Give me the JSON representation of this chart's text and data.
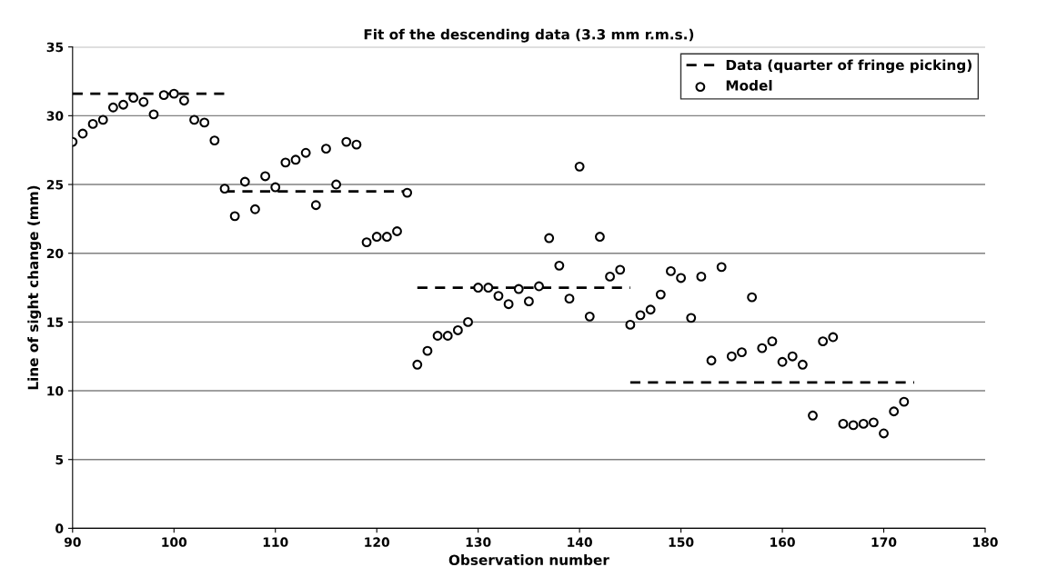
{
  "chart_data": {
    "type": "scatter",
    "title": "Fit of the descending data (3.3 mm r.m.s.)",
    "xlabel": "Observation number",
    "ylabel": "Line of sight change (mm)",
    "xlim": [
      90,
      180
    ],
    "xticks": [
      90,
      100,
      110,
      120,
      130,
      140,
      150,
      160,
      170,
      180
    ],
    "ylim": [
      0,
      35
    ],
    "yticks": [
      0,
      5,
      10,
      15,
      20,
      25,
      30,
      35
    ],
    "grid": "y",
    "legend": "top right",
    "series": [
      {
        "name": "Data (quarter of fringe picking)",
        "type": "line",
        "line_style": "dashed",
        "marker": "none",
        "color": "#000000",
        "x": [
          90,
          105
        ],
        "values": [
          31.6,
          31.6
        ]
      },
      {
        "type": "line",
        "line_style": "dashed",
        "marker": "none",
        "color": "#000000",
        "x": [
          105,
          123
        ],
        "values": [
          24.5,
          24.5
        ]
      },
      {
        "type": "line",
        "line_style": "dashed",
        "marker": "none",
        "color": "#000000",
        "x": [
          124,
          145
        ],
        "values": [
          17.5,
          17.5
        ]
      },
      {
        "type": "line",
        "line_style": "dashed",
        "marker": "none",
        "color": "#000000",
        "x": [
          145,
          173
        ],
        "values": [
          10.6,
          10.6
        ]
      },
      {
        "name": "Model",
        "marker": "circle",
        "color": "#000000",
        "x": [
          90,
          91,
          92,
          93,
          94,
          95,
          96,
          97,
          98,
          99,
          100,
          101,
          102,
          103,
          104,
          105,
          106,
          107,
          108,
          109,
          110,
          111,
          112,
          113,
          114,
          115,
          116,
          117,
          118,
          119,
          120,
          121,
          122,
          123,
          124,
          125,
          126,
          127,
          128,
          129,
          130,
          131,
          132,
          133,
          134,
          135,
          136,
          137,
          138,
          139,
          140,
          141,
          142,
          143,
          144,
          145,
          146,
          147,
          148,
          149,
          150,
          151,
          152,
          153,
          154,
          155,
          156,
          157,
          158,
          159,
          160,
          161,
          162,
          163,
          164,
          165,
          166,
          167,
          168,
          169,
          170,
          171,
          172
        ],
        "values": [
          28.1,
          28.7,
          29.4,
          29.7,
          30.6,
          30.8,
          31.3,
          31.0,
          30.1,
          31.5,
          31.6,
          31.1,
          29.7,
          29.5,
          28.2,
          24.7,
          22.7,
          25.2,
          23.2,
          25.6,
          24.8,
          26.6,
          26.8,
          27.3,
          23.5,
          27.6,
          25.0,
          28.1,
          27.9,
          20.8,
          21.2,
          21.2,
          21.6,
          24.4,
          11.9,
          12.9,
          14.0,
          14.0,
          14.4,
          15.0,
          17.5,
          17.5,
          16.9,
          16.3,
          17.4,
          16.5,
          17.6,
          21.1,
          19.1,
          16.7,
          26.3,
          15.4,
          21.2,
          18.3,
          18.8,
          14.8,
          15.5,
          15.9,
          17.0,
          18.7,
          18.2,
          15.3,
          18.3,
          12.2,
          19.0,
          12.5,
          12.8,
          16.8,
          13.1,
          13.6,
          12.1,
          12.5,
          11.9,
          8.2,
          13.6,
          13.9,
          7.6,
          7.5,
          7.6,
          7.7,
          6.9,
          8.5,
          9.2
        ]
      }
    ]
  }
}
